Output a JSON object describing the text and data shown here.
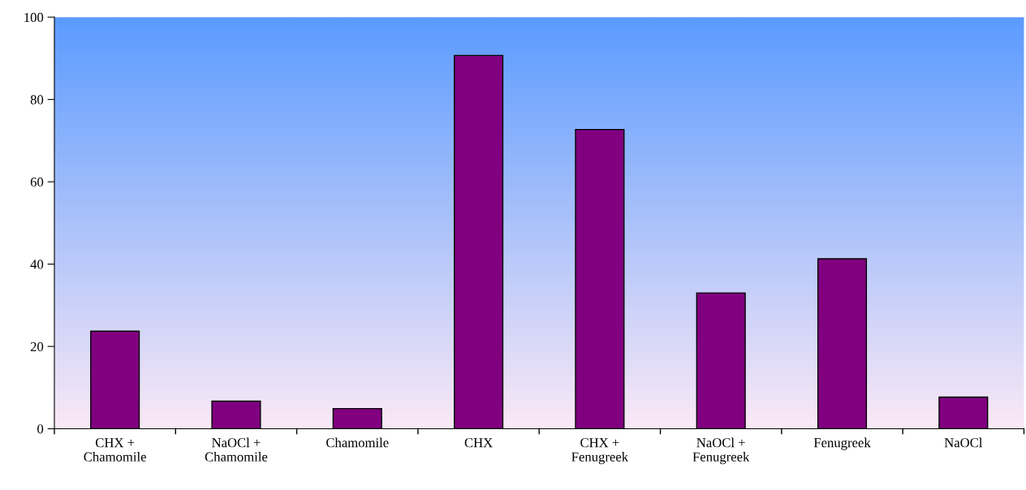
{
  "chart_data": {
    "type": "bar",
    "categories": [
      "CHX +\nChamomile",
      "NaOCl +\nChamomile",
      "Chamomile",
      "CHX",
      "CHX +\nFenugreek",
      "NaOCl +\nFenugreek",
      "Fenugreek",
      "NaOCl"
    ],
    "values": [
      23.7,
      6.7,
      4.9,
      90.7,
      72.7,
      33.0,
      41.3,
      7.7
    ],
    "color": "#800080",
    "ylim": [
      0,
      100
    ],
    "yticks": [
      0,
      20,
      40,
      60,
      80,
      100
    ],
    "grid": false,
    "legend": false
  }
}
